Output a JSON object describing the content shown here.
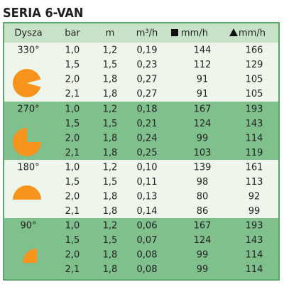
{
  "title": "SERIA 6-VAN",
  "header": [
    "Dysza",
    "bar",
    "m",
    "m³/h",
    "mm/h",
    "mm/h"
  ],
  "groups": [
    {
      "label": "330°",
      "rows": [
        [
          "1,0",
          "1,2",
          "0,19",
          "144",
          "166"
        ],
        [
          "1,5",
          "1,5",
          "0,23",
          "112",
          "129"
        ],
        [
          "2,0",
          "1,8",
          "0,27",
          "91",
          "105"
        ],
        [
          "2,1",
          "1,8",
          "0,27",
          "91",
          "105"
        ]
      ]
    },
    {
      "label": "270°",
      "rows": [
        [
          "1,0",
          "1,2",
          "0,18",
          "167",
          "193"
        ],
        [
          "1,5",
          "1,5",
          "0,21",
          "124",
          "143"
        ],
        [
          "2,0",
          "1,8",
          "0,24",
          "99",
          "114"
        ],
        [
          "2,1",
          "1,8",
          "0,25",
          "103",
          "119"
        ]
      ]
    },
    {
      "label": "180°",
      "rows": [
        [
          "1,0",
          "1,2",
          "0,10",
          "139",
          "161"
        ],
        [
          "1,5",
          "1,5",
          "0,11",
          "98",
          "113"
        ],
        [
          "2,0",
          "1,8",
          "0,13",
          "80",
          "92"
        ],
        [
          "2,1",
          "1,8",
          "0,14",
          "86",
          "99"
        ]
      ]
    },
    {
      "label": "90°",
      "rows": [
        [
          "1,0",
          "1,2",
          "0,06",
          "167",
          "193"
        ],
        [
          "1,5",
          "1,5",
          "0,07",
          "124",
          "143"
        ],
        [
          "2,0",
          "1,8",
          "0,08",
          "99",
          "114"
        ],
        [
          "2,1",
          "1,8",
          "0,08",
          "99",
          "114"
        ]
      ]
    }
  ]
}
